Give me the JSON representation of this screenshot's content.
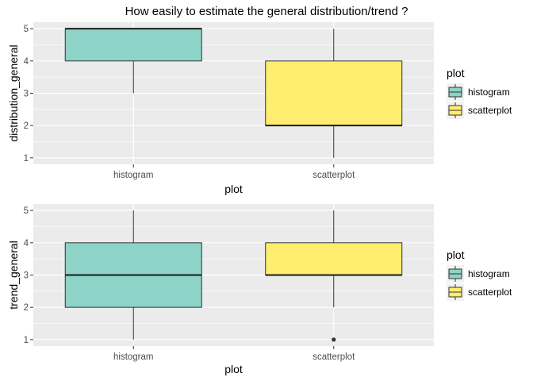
{
  "title": "How easily to estimate the general distribution/trend ?",
  "colors": {
    "histogram": "#8DD3C7",
    "scatterplot": "#FFED6F",
    "panel_bg": "#EBEBEB",
    "grid": "#FFFFFF",
    "line": "#333333"
  },
  "chart_data": [
    {
      "type": "boxplot",
      "xlabel": "plot",
      "ylabel": "distribution_general",
      "categories": [
        "histogram",
        "scatterplot"
      ],
      "ylim": [
        0.8,
        5.2
      ],
      "yticks": [
        1,
        2,
        3,
        4,
        5
      ],
      "boxes": [
        {
          "category": "histogram",
          "min": 3,
          "q1": 4,
          "median": 5,
          "q3": 5,
          "max": 5,
          "outliers": []
        },
        {
          "category": "scatterplot",
          "min": 1,
          "q1": 2,
          "median": 2,
          "q3": 4,
          "max": 5,
          "outliers": []
        }
      ],
      "legend": {
        "title": "plot",
        "entries": [
          "histogram",
          "scatterplot"
        ],
        "position": "right"
      }
    },
    {
      "type": "boxplot",
      "xlabel": "plot",
      "ylabel": "trend_general",
      "categories": [
        "histogram",
        "scatterplot"
      ],
      "ylim": [
        0.8,
        5.2
      ],
      "yticks": [
        1,
        2,
        3,
        4,
        5
      ],
      "boxes": [
        {
          "category": "histogram",
          "min": 1,
          "q1": 2,
          "median": 3,
          "q3": 4,
          "max": 5,
          "outliers": []
        },
        {
          "category": "scatterplot",
          "min": 2,
          "q1": 3,
          "median": 3,
          "q3": 4,
          "max": 5,
          "outliers": [
            1
          ]
        }
      ],
      "legend": {
        "title": "plot",
        "entries": [
          "histogram",
          "scatterplot"
        ],
        "position": "right"
      }
    }
  ]
}
